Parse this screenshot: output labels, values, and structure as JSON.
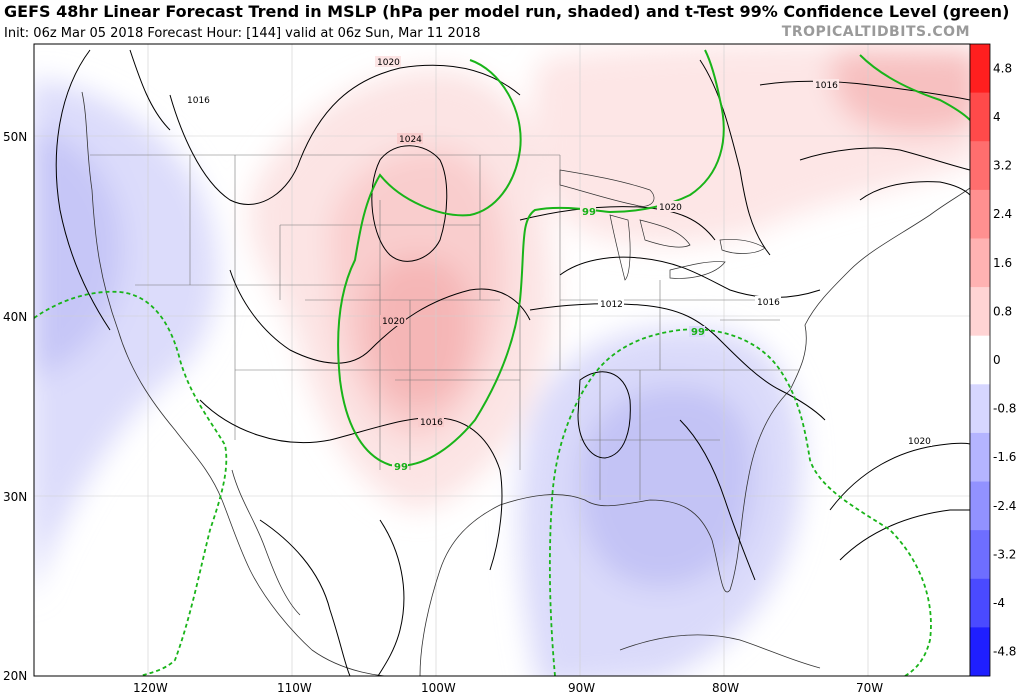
{
  "header": {
    "title": "GEFS 48hr Linear Forecast Trend in MSLP (hPa per model run, shaded) and t-Test 99% Confidence Level (green)",
    "subtitle": "Init: 06z Mar 05 2018   Forecast Hour: [144]   valid at 06z Sun, Mar 11 2018",
    "brand": "TROPICALTIDBITS.COM"
  },
  "axes": {
    "lat_labels": [
      "50N",
      "40N",
      "30N",
      "20N"
    ],
    "lon_labels": [
      "120W",
      "110W",
      "100W",
      "90W",
      "80W",
      "70W"
    ]
  },
  "colorbar": {
    "labels": [
      "4.8",
      "4",
      "3.2",
      "2.4",
      "1.6",
      "0.8",
      "0",
      "-0.8",
      "-1.6",
      "-2.4",
      "-3.2",
      "-4",
      "-4.8"
    ],
    "colors": [
      "#ff1f1f",
      "#ff4a4a",
      "#ff6e6e",
      "#ff9090",
      "#ffb2b2",
      "#ffd4d4",
      "#ffffff",
      "#d6d6ff",
      "#b4b4ff",
      "#9292ff",
      "#6e6eff",
      "#4a4aff",
      "#1f1fff"
    ]
  },
  "contour_labels": {
    "c1020_nw": "1020",
    "c1016_nw": "1016",
    "c1024": "1024",
    "c1020_center": "1020",
    "c1016_south": "1016",
    "c1012": "1012",
    "c1020_great_lakes": "1020",
    "c1016_east": "1016",
    "c1016_ne": "1016",
    "c1020_atlantic": "1020"
  },
  "significance_labels": {
    "s1": "99",
    "s2": "99",
    "s3": "99"
  }
}
